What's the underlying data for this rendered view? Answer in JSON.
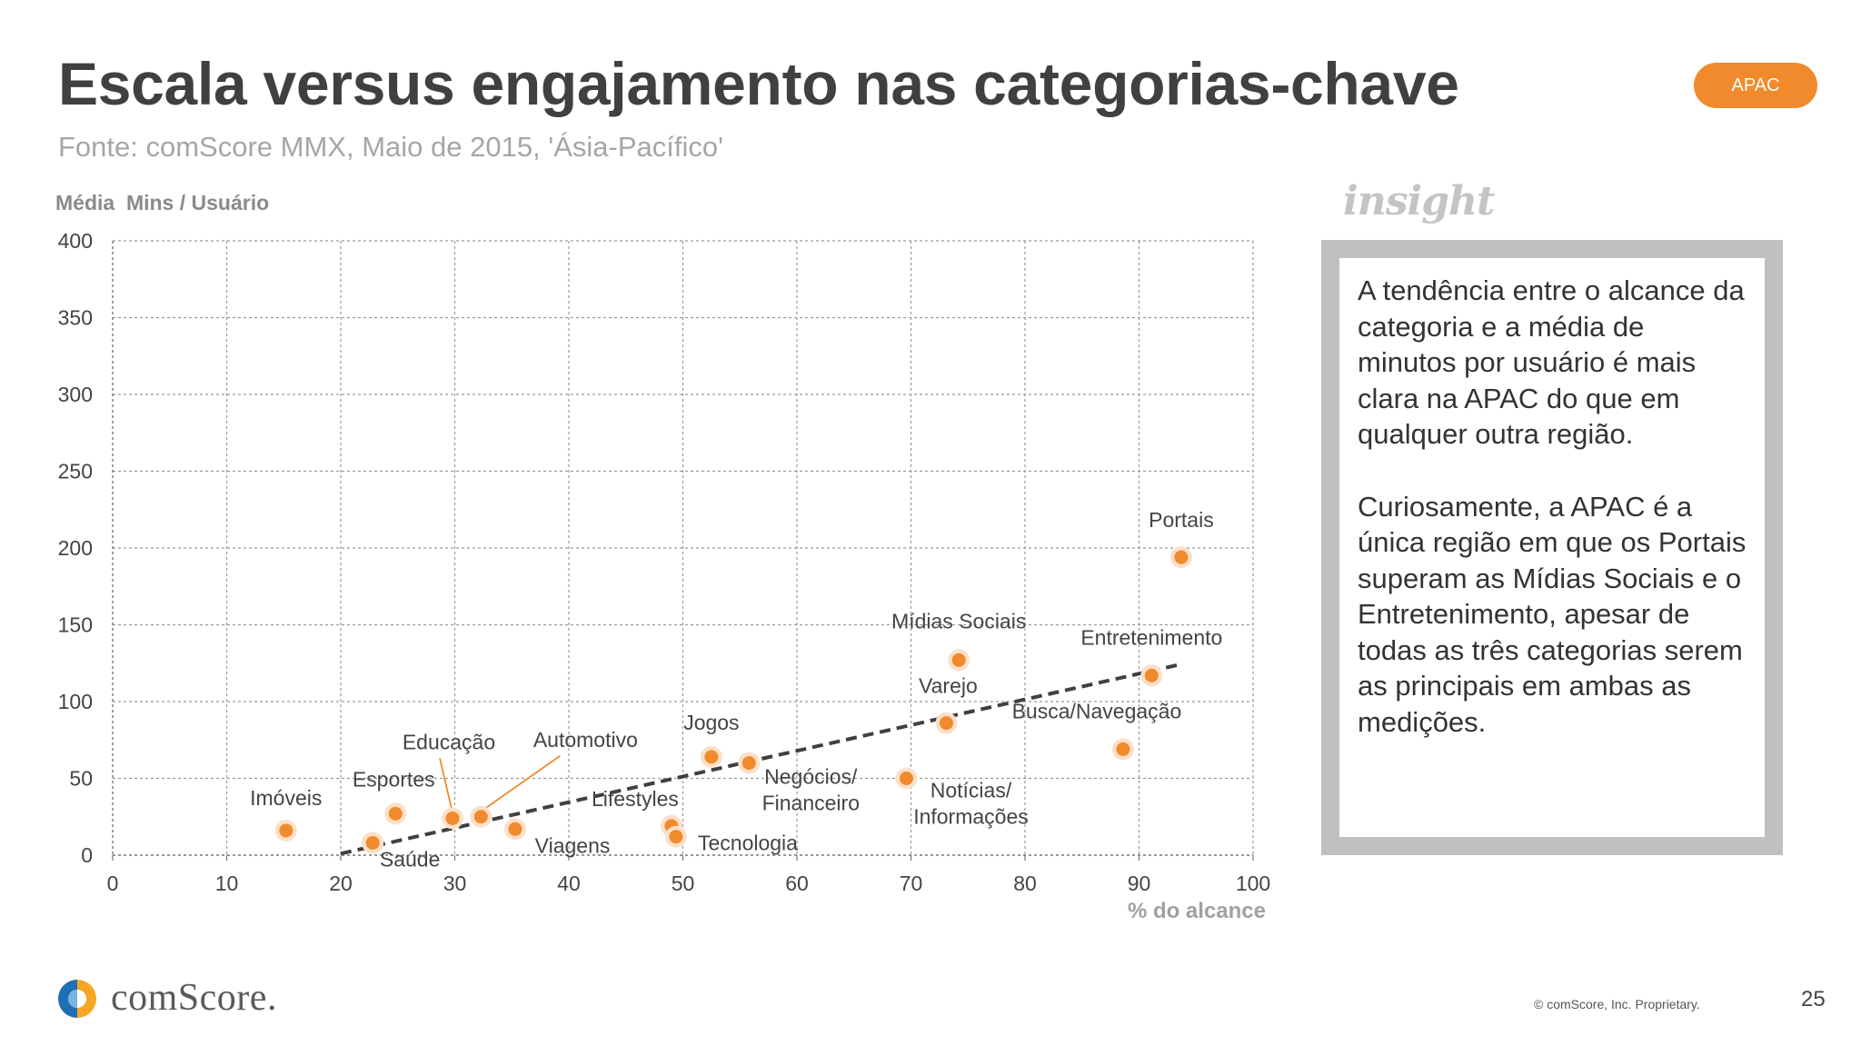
{
  "header": {
    "title": "Escala versus engajamento nas categorias-chave",
    "subtitle": "Fonte: comScore MMX, Maio de 2015, 'Ásia-Pacífico'",
    "region_badge": "APAC"
  },
  "insight": {
    "heading": "insight",
    "paragraphs": [
      "A tendência entre o alcance da categoria e a média de minutos por usuário é mais clara na APAC do que em qualquer outra região.",
      "Curiosamente, a APAC é a única região em que os Portais superam as Mídias Sociais e o Entretenimento, apesar de todas as três categorias serem as principais em ambas as medições."
    ]
  },
  "footer": {
    "logo_text": "comScore.",
    "copyright": "© comScore, Inc. Proprietary.",
    "page_number": "25"
  },
  "colors": {
    "point": "#f08a2c",
    "point_halo": "#fbe0c8",
    "trendline": "#404040",
    "grid": "#9a9a9a",
    "badge": "#f08a2c"
  },
  "chart_data": {
    "type": "scatter",
    "title": "",
    "xlabel": "% do alcance",
    "ylabel": "Média  Mins / Usuário",
    "xlim": [
      0,
      100
    ],
    "ylim": [
      0,
      400
    ],
    "xticks": [
      "0",
      "10",
      "20",
      "30",
      "40",
      "50",
      "60",
      "70",
      "80",
      "90",
      "100"
    ],
    "yticks": [
      "0",
      "50",
      "100",
      "150",
      "200",
      "250",
      "300",
      "350",
      "400"
    ],
    "grid": true,
    "points": [
      {
        "label": "Imóveis",
        "x": 15.2,
        "y": 16
      },
      {
        "label": "Saúde",
        "x": 22.8,
        "y": 8
      },
      {
        "label": "Esportes",
        "x": 24.8,
        "y": 27
      },
      {
        "label": "Educação",
        "x": 29.8,
        "y": 24
      },
      {
        "label": "Automotivo",
        "x": 32.3,
        "y": 25
      },
      {
        "label": "Viagens",
        "x": 35.3,
        "y": 17
      },
      {
        "label": "Lifestyles",
        "x": 49.0,
        "y": 19
      },
      {
        "label": "Tecnologia",
        "x": 49.4,
        "y": 12
      },
      {
        "label": "Jogos",
        "x": 52.5,
        "y": 64
      },
      {
        "label": "Negócios/ Financeiro",
        "x": 55.8,
        "y": 60
      },
      {
        "label": "Notícias/ Informações",
        "x": 69.6,
        "y": 50
      },
      {
        "label": "Varejo",
        "x": 73.1,
        "y": 86
      },
      {
        "label": "Mídias Sociais",
        "x": 74.2,
        "y": 127
      },
      {
        "label": "Busca/Navegação",
        "x": 88.6,
        "y": 69
      },
      {
        "label": "Entretenimento",
        "x": 91.1,
        "y": 117
      },
      {
        "label": "Portais",
        "x": 93.7,
        "y": 194
      }
    ],
    "trendline": {
      "x": [
        20,
        93.5
      ],
      "y": [
        1,
        124
      ]
    }
  }
}
